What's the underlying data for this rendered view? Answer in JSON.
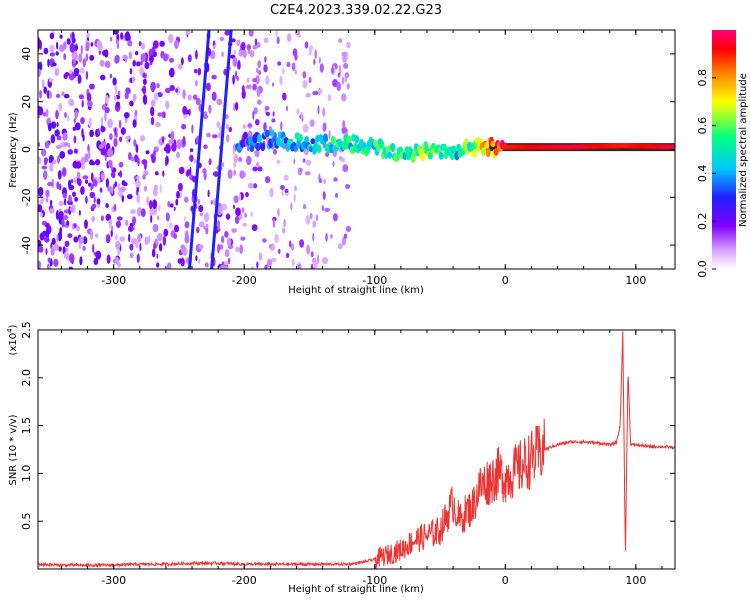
{
  "title": "C2E4.2023.339.02.22.G23",
  "chart_data": [
    {
      "type": "heatmap",
      "xlabel": "Height of straight line (km)",
      "ylabel": "Frequency (Hz)",
      "xlim": [
        -358,
        130
      ],
      "ylim": [
        -50,
        50
      ],
      "xticks": [
        -300,
        -200,
        -100,
        0,
        100
      ],
      "xtick_labels": [
        "-300",
        "-200",
        "-100",
        "0",
        "100"
      ],
      "yticks": [
        -40,
        -20,
        0,
        20,
        40
      ],
      "ytick_labels": [
        "-40",
        "-20",
        "0",
        "20",
        "40"
      ],
      "colorbar": {
        "label": "Normalized spectral amplitude",
        "range": [
          0,
          1
        ],
        "ticks": [
          0.0,
          0.2,
          0.4,
          0.6,
          0.8
        ],
        "tick_labels": [
          "0.0",
          "0.2",
          "0.4",
          "0.6",
          "0.8"
        ],
        "colormap": [
          "#ffffff",
          "#a000ff",
          "#2020ff",
          "#00e0ff",
          "#00ff60",
          "#ffff00",
          "#ff8000",
          "#ff0000",
          "#ff0080"
        ]
      },
      "features": {
        "noise_region_x": [
          -358,
          -120
        ],
        "diagonal_streaks": [
          {
            "x_bottom": -242,
            "x_top": -227
          },
          {
            "x_bottom": -225,
            "x_top": -210
          }
        ],
        "signal_line": [
          {
            "x": -205,
            "freq": 3,
            "amp": 0.25
          },
          {
            "x": -180,
            "freq": 4,
            "amp": 0.3
          },
          {
            "x": -160,
            "freq": 3,
            "amp": 0.35
          },
          {
            "x": -140,
            "freq": 2,
            "amp": 0.4
          },
          {
            "x": -120,
            "freq": 3,
            "amp": 0.45
          },
          {
            "x": -100,
            "freq": 1,
            "amp": 0.45
          },
          {
            "x": -80,
            "freq": -2,
            "amp": 0.45
          },
          {
            "x": -60,
            "freq": 0,
            "amp": 0.55
          },
          {
            "x": -40,
            "freq": -1,
            "amp": 0.4
          },
          {
            "x": -20,
            "freq": 1,
            "amp": 0.6
          },
          {
            "x": 0,
            "freq": 1,
            "amp": 0.9
          },
          {
            "x": 50,
            "freq": 1,
            "amp": 0.95
          },
          {
            "x": 90,
            "freq": 1.5,
            "amp": 0.9
          },
          {
            "x": 130,
            "freq": 1,
            "amp": 0.95
          }
        ]
      }
    },
    {
      "type": "line",
      "xlabel": "Height of straight line (km)",
      "ylabel": "SNR (10 * v/v)",
      "y_scale_label": "(x10",
      "y_scale_exponent": "4",
      "y_scale_close": ")",
      "xlim": [
        -358,
        130
      ],
      "ylim": [
        0,
        2.5
      ],
      "xticks": [
        -300,
        -200,
        -100,
        0,
        100
      ],
      "xtick_labels": [
        "-300",
        "-200",
        "-100",
        "0",
        "100"
      ],
      "yticks": [
        0.5,
        1.0,
        1.5,
        2.0,
        2.5
      ],
      "ytick_labels": [
        "0.5",
        "1.0",
        "1.5",
        "2.0",
        "2.5"
      ],
      "color": "#ee3333",
      "series": [
        {
          "x": [
            -358,
            -340,
            -320,
            -300,
            -280,
            -260,
            -240,
            -220,
            -200,
            -180,
            -160,
            -140,
            -120,
            -110,
            -100,
            -90,
            -80,
            -70,
            -60,
            -50,
            -40,
            -35,
            -30,
            -25,
            -20,
            -15,
            -10,
            -5,
            0,
            10,
            20,
            30,
            40,
            50,
            60,
            70,
            80,
            85,
            88,
            90,
            92,
            94,
            96,
            100,
            110,
            120,
            130
          ],
          "y": [
            0.05,
            0.04,
            0.04,
            0.04,
            0.05,
            0.05,
            0.06,
            0.06,
            0.05,
            0.05,
            0.05,
            0.05,
            0.05,
            0.07,
            0.1,
            0.15,
            0.2,
            0.3,
            0.35,
            0.4,
            0.7,
            0.5,
            0.6,
            0.65,
            0.85,
            0.9,
            0.95,
            1.0,
            0.95,
            1.05,
            1.15,
            1.25,
            1.3,
            1.33,
            1.33,
            1.32,
            1.3,
            1.32,
            1.5,
            2.5,
            0.1,
            2.1,
            1.3,
            1.3,
            1.28,
            1.28,
            1.27
          ]
        }
      ]
    }
  ]
}
